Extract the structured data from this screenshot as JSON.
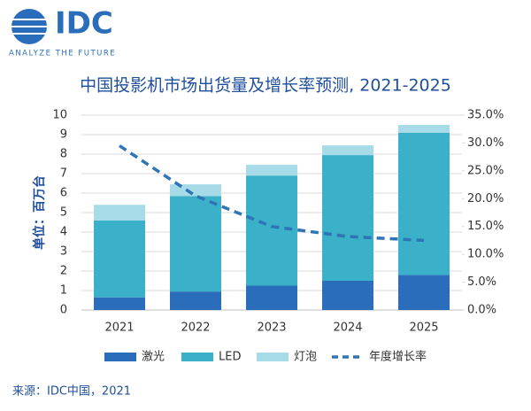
{
  "logo": {
    "name": "IDC",
    "tagline": "ANALYZE THE FUTURE"
  },
  "chart_data": {
    "type": "bar",
    "stacked": true,
    "title": "中国投影机市场出货量及增长率预测, 2021-2025",
    "y_label": "单位：百万台",
    "categories": [
      "2021",
      "2022",
      "2023",
      "2024",
      "2025"
    ],
    "series": [
      {
        "name": "激光",
        "color": "#2a6ebb",
        "values": [
          0.65,
          0.95,
          1.25,
          1.5,
          1.8
        ]
      },
      {
        "name": "LED",
        "color": "#3bb0c9",
        "values": [
          3.95,
          4.9,
          5.65,
          6.45,
          7.3
        ]
      },
      {
        "name": "灯泡",
        "color": "#a8dbe8",
        "values": [
          0.8,
          0.6,
          0.55,
          0.5,
          0.4
        ]
      },
      {
        "name": "年度增长率",
        "type": "line",
        "axis": "y2",
        "color": "#2e75b6",
        "dashed": true,
        "values": [
          29.5,
          20.5,
          15,
          13.2,
          12.5
        ]
      }
    ],
    "ylim": [
      0,
      10
    ],
    "yticks": [
      0,
      1,
      2,
      3,
      4,
      5,
      6,
      7,
      8,
      9,
      10
    ],
    "y2lim": [
      0,
      35
    ],
    "y2ticks": [
      {
        "value": 0,
        "label": "0.0%"
      },
      {
        "value": 5,
        "label": "5.0%"
      },
      {
        "value": 10,
        "label": "10.0%"
      },
      {
        "value": 15,
        "label": "15.0%"
      },
      {
        "value": 20,
        "label": "20.0%"
      },
      {
        "value": 25,
        "label": "25.0%"
      },
      {
        "value": 30,
        "label": "30.0%"
      },
      {
        "value": 35,
        "label": "35.0%"
      }
    ],
    "grid": true,
    "legend": "bottom",
    "source": "来源：IDC中国，2021"
  }
}
